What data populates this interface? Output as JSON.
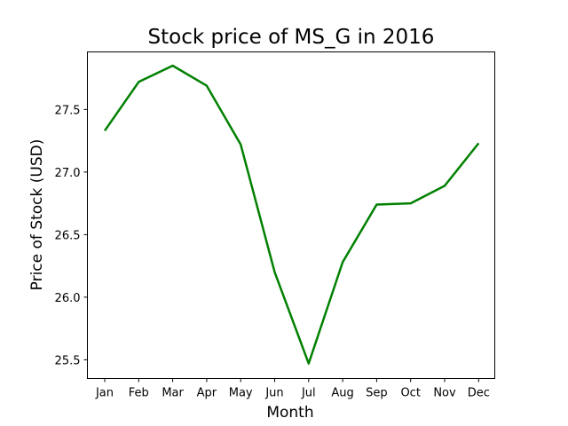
{
  "chart_data": {
    "type": "line",
    "title": "Stock price of MS_G in 2016",
    "xlabel": "Month",
    "ylabel": "Price of Stock (USD)",
    "categories": [
      "Jan",
      "Feb",
      "Mar",
      "Apr",
      "May",
      "Jun",
      "Jul",
      "Aug",
      "Sep",
      "Oct",
      "Nov",
      "Dec"
    ],
    "series": [
      {
        "values": [
          27.33,
          27.72,
          27.85,
          27.69,
          27.22,
          26.2,
          25.47,
          26.28,
          26.74,
          26.75,
          26.89,
          27.23
        ],
        "color": "#008000"
      }
    ],
    "yticks": [
      25.5,
      26.0,
      26.5,
      27.0,
      27.5
    ],
    "ytick_labels": [
      "25.5",
      "26.0",
      "26.5",
      "27.0",
      "27.5"
    ],
    "ylim": [
      25.35,
      27.96
    ],
    "grid": false,
    "legend": "none"
  }
}
